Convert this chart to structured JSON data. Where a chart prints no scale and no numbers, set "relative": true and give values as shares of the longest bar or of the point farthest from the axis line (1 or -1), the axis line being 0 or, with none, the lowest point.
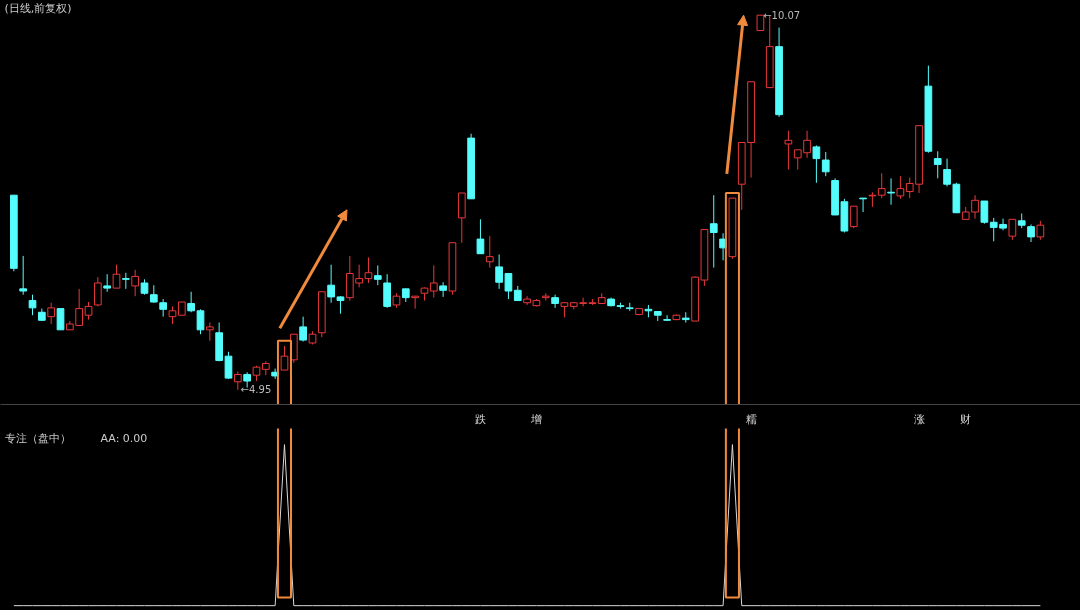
{
  "chart_data": [
    {
      "type": "candlestick",
      "title": "(日线,前复权)",
      "categories": [
        null,
        null,
        null,
        null,
        null,
        null,
        null,
        null,
        null,
        null,
        null,
        null,
        null,
        null,
        null,
        null,
        null,
        null,
        null,
        null,
        null,
        null,
        null,
        null,
        null,
        null,
        null,
        null,
        null,
        null,
        null,
        null,
        null,
        null,
        null,
        null,
        null,
        null,
        null,
        null,
        null,
        null,
        null,
        null,
        null,
        null,
        null,
        null,
        null,
        null,
        "跌",
        null,
        null,
        null,
        null,
        null,
        "增",
        null,
        null,
        null,
        null,
        null,
        null,
        null,
        null,
        null,
        null,
        null,
        null,
        null,
        null,
        null,
        null,
        null,
        null,
        null,
        null,
        null,
        null,
        "糯",
        null,
        null,
        null,
        null,
        null,
        null,
        null,
        null,
        null,
        null,
        null,
        null,
        null,
        null,
        null,
        null,
        null,
        "涨",
        null,
        null,
        null,
        null,
        "财",
        null,
        null,
        null,
        null,
        null,
        null,
        null,
        null
      ],
      "relative": false,
      "ohlc": [
        [
          7.61,
          7.61,
          6.57,
          6.61
        ],
        [
          6.33,
          6.78,
          6.25,
          6.3
        ],
        [
          6.17,
          6.25,
          5.97,
          6.07
        ],
        [
          6.01,
          6.06,
          5.89,
          5.9
        ],
        [
          5.95,
          6.14,
          5.85,
          6.07
        ],
        [
          6.06,
          6.06,
          5.77,
          5.77
        ],
        [
          5.77,
          5.89,
          5.77,
          5.85
        ],
        [
          5.83,
          6.33,
          5.83,
          6.06
        ],
        [
          5.97,
          6.15,
          5.91,
          6.09
        ],
        [
          6.11,
          6.49,
          6.09,
          6.41
        ],
        [
          6.37,
          6.53,
          6.29,
          6.34
        ],
        [
          6.34,
          6.66,
          6.34,
          6.53
        ],
        [
          6.47,
          6.55,
          6.33,
          6.46
        ],
        [
          6.37,
          6.59,
          6.23,
          6.5
        ],
        [
          6.41,
          6.46,
          6.25,
          6.27
        ],
        [
          6.25,
          6.38,
          6.14,
          6.15
        ],
        [
          6.14,
          6.19,
          5.95,
          6.05
        ],
        [
          5.95,
          6.09,
          5.85,
          6.03
        ],
        [
          5.97,
          6.15,
          5.97,
          6.15
        ],
        [
          6.13,
          6.29,
          6.01,
          6.03
        ],
        [
          6.03,
          6.05,
          5.71,
          5.77
        ],
        [
          5.77,
          5.87,
          5.62,
          5.81
        ],
        [
          5.73,
          5.87,
          5.34,
          5.35
        ],
        [
          5.41,
          5.47,
          5.1,
          5.11
        ],
        [
          5.06,
          5.2,
          4.95,
          5.16
        ],
        [
          5.16,
          5.19,
          4.98,
          5.07
        ],
        [
          5.15,
          5.28,
          5.07,
          5.26
        ],
        [
          5.23,
          5.34,
          5.15,
          5.31
        ],
        [
          5.19,
          5.24,
          5.1,
          5.14
        ],
        [
          5.22,
          5.55,
          5.22,
          5.41
        ],
        [
          5.36,
          5.71,
          5.32,
          5.71
        ],
        [
          5.81,
          5.95,
          5.61,
          5.63
        ],
        [
          5.59,
          5.75,
          5.57,
          5.71
        ],
        [
          5.73,
          6.29,
          5.67,
          6.29
        ],
        [
          6.38,
          6.66,
          6.14,
          6.22
        ],
        [
          6.22,
          6.23,
          5.99,
          6.17
        ],
        [
          6.21,
          6.78,
          6.17,
          6.54
        ],
        [
          6.41,
          6.66,
          6.35,
          6.47
        ],
        [
          6.47,
          6.76,
          6.41,
          6.55
        ],
        [
          6.51,
          6.65,
          6.38,
          6.46
        ],
        [
          6.41,
          6.53,
          6.07,
          6.09
        ],
        [
          6.11,
          6.27,
          6.07,
          6.23
        ],
        [
          6.33,
          6.33,
          6.15,
          6.21
        ],
        [
          6.21,
          6.23,
          6.06,
          6.23
        ],
        [
          6.27,
          6.35,
          6.17,
          6.34
        ],
        [
          6.3,
          6.65,
          6.21,
          6.41
        ],
        [
          6.37,
          6.42,
          6.22,
          6.31
        ],
        [
          6.3,
          6.96,
          6.25,
          6.96
        ],
        [
          7.3,
          7.64,
          6.96,
          7.64
        ],
        [
          8.39,
          8.45,
          7.56,
          7.56
        ],
        [
          7.01,
          7.28,
          6.81,
          6.81
        ],
        [
          6.7,
          7.05,
          6.62,
          6.77
        ],
        [
          6.63,
          6.8,
          6.33,
          6.42
        ],
        [
          6.54,
          6.54,
          6.19,
          6.3
        ],
        [
          6.31,
          6.37,
          6.17,
          6.17
        ],
        [
          6.14,
          6.23,
          6.11,
          6.19
        ],
        [
          6.1,
          6.19,
          6.09,
          6.17
        ],
        [
          6.21,
          6.27,
          6.17,
          6.23
        ],
        [
          6.21,
          6.25,
          6.07,
          6.13
        ],
        [
          6.09,
          6.15,
          5.94,
          6.14
        ],
        [
          6.09,
          6.15,
          6.05,
          6.14
        ],
        [
          6.13,
          6.21,
          6.09,
          6.14
        ],
        [
          6.13,
          6.19,
          6.11,
          6.14
        ],
        [
          6.13,
          6.27,
          6.13,
          6.21
        ],
        [
          6.19,
          6.21,
          6.09,
          6.1
        ],
        [
          6.1,
          6.14,
          6.06,
          6.09
        ],
        [
          6.07,
          6.14,
          6.03,
          6.06
        ],
        [
          5.98,
          6.06,
          5.97,
          6.06
        ],
        [
          6.05,
          6.11,
          5.94,
          6.03
        ],
        [
          6.02,
          6.02,
          5.89,
          5.97
        ],
        [
          5.91,
          5.97,
          5.89,
          5.9
        ],
        [
          5.91,
          5.98,
          5.9,
          5.97
        ],
        [
          5.93,
          6.01,
          5.87,
          5.91
        ],
        [
          5.89,
          6.5,
          5.89,
          6.49
        ],
        [
          6.45,
          7.14,
          6.37,
          7.14
        ],
        [
          7.22,
          7.61,
          6.62,
          7.1
        ],
        [
          7.01,
          7.09,
          6.72,
          6.89
        ],
        [
          6.77,
          7.57,
          6.74,
          7.57
        ],
        [
          7.76,
          8.33,
          7.41,
          8.33
        ],
        [
          8.33,
          9.16,
          7.85,
          9.16
        ],
        [
          9.86,
          10.07,
          9.86,
          10.07
        ],
        [
          9.08,
          10.06,
          9.08,
          9.64
        ],
        [
          9.64,
          9.9,
          8.68,
          8.71
        ],
        [
          8.31,
          8.49,
          7.96,
          8.36
        ],
        [
          8.12,
          8.23,
          7.96,
          8.23
        ],
        [
          8.19,
          8.49,
          8.12,
          8.36
        ],
        [
          8.27,
          8.29,
          7.78,
          8.11
        ],
        [
          8.09,
          8.2,
          7.87,
          7.93
        ],
        [
          7.81,
          7.84,
          7.34,
          7.34
        ],
        [
          7.52,
          7.56,
          7.1,
          7.12
        ],
        [
          7.18,
          7.46,
          7.16,
          7.46
        ],
        [
          7.57,
          7.57,
          7.38,
          7.56
        ],
        [
          7.6,
          7.65,
          7.45,
          7.61
        ],
        [
          7.61,
          7.91,
          7.57,
          7.7
        ],
        [
          7.65,
          7.84,
          7.48,
          7.64
        ],
        [
          7.6,
          7.87,
          7.56,
          7.7
        ],
        [
          7.66,
          7.85,
          7.57,
          7.77
        ],
        [
          7.76,
          8.56,
          7.64,
          8.56
        ],
        [
          9.1,
          9.38,
          8.19,
          8.21
        ],
        [
          8.11,
          8.21,
          7.84,
          8.03
        ],
        [
          7.96,
          8.11,
          7.73,
          7.76
        ],
        [
          7.76,
          7.78,
          7.37,
          7.37
        ],
        [
          7.28,
          7.45,
          7.28,
          7.38
        ],
        [
          7.38,
          7.61,
          7.29,
          7.54
        ],
        [
          7.53,
          7.53,
          7.22,
          7.24
        ],
        [
          7.24,
          7.3,
          6.98,
          7.17
        ],
        [
          7.21,
          7.29,
          7.13,
          7.16
        ],
        [
          7.05,
          7.28,
          7.0,
          7.28
        ],
        [
          7.26,
          7.36,
          7.16,
          7.2
        ],
        [
          7.18,
          7.21,
          6.97,
          7.04
        ],
        [
          7.04,
          7.26,
          7.0,
          7.2
        ]
      ],
      "colors": [
        "#54fcfc",
        "#54fcfc",
        "#54fcfc",
        "#54fcfc",
        "#e8383a",
        "#54fcfc",
        "#e8383a",
        "#e8383a",
        "#e8383a",
        "#e8383a",
        "#54fcfc",
        "#e8383a",
        "#54fcfc",
        "#e8383a",
        "#54fcfc",
        "#54fcfc",
        "#54fcfc",
        "#e8383a",
        "#e8383a",
        "#54fcfc",
        "#54fcfc",
        "#e8383a",
        "#54fcfc",
        "#54fcfc",
        "#e8383a",
        "#54fcfc",
        "#e8383a",
        "#e8383a",
        "#54fcfc",
        "#e8383a",
        "#e8383a",
        "#54fcfc",
        "#e8383a",
        "#e8383a",
        "#54fcfc",
        "#54fcfc",
        "#e8383a",
        "#e8383a",
        "#e8383a",
        "#54fcfc",
        "#54fcfc",
        "#e8383a",
        "#54fcfc",
        "#e8383a",
        "#e8383a",
        "#e8383a",
        "#54fcfc",
        "#e8383a",
        "#e8383a",
        "#54fcfc",
        "#54fcfc",
        "#e8383a",
        "#54fcfc",
        "#54fcfc",
        "#54fcfc",
        "#e8383a",
        "#e8383a",
        "#e8383a",
        "#54fcfc",
        "#e8383a",
        "#e8383a",
        "#e8383a",
        "#e8383a",
        "#e8383a",
        "#54fcfc",
        "#54fcfc",
        "#54fcfc",
        "#e8383a",
        "#54fcfc",
        "#54fcfc",
        "#54fcfc",
        "#e8383a",
        "#54fcfc",
        "#e8383a",
        "#e8383a",
        "#54fcfc",
        "#54fcfc",
        "#e8383a",
        "#e8383a",
        "#e8383a",
        "#e8383a",
        "#e8383a",
        "#54fcfc",
        "#e8383a",
        "#e8383a",
        "#e8383a",
        "#54fcfc",
        "#54fcfc",
        "#54fcfc",
        "#54fcfc",
        "#e8383a",
        "#54fcfc",
        "#e8383a",
        "#e8383a",
        "#54fcfc",
        "#e8383a",
        "#e8383a",
        "#e8383a",
        "#54fcfc",
        "#54fcfc",
        "#54fcfc",
        "#54fcfc",
        "#e8383a",
        "#e8383a",
        "#54fcfc",
        "#54fcfc",
        "#54fcfc",
        "#e8383a",
        "#54fcfc",
        "#54fcfc",
        "#e8383a"
      ],
      "annotations": [
        "←4.95",
        "←10.07"
      ]
    },
    {
      "type": "line",
      "title": "专注（盘中）",
      "relative": true,
      "categories": [
        null,
        null,
        null,
        null,
        null,
        null,
        null,
        null,
        null,
        null,
        null,
        null,
        null,
        null,
        null,
        null,
        null,
        null,
        null,
        null,
        null,
        null,
        null,
        null,
        null,
        null,
        null,
        null,
        null,
        null,
        null,
        null,
        null,
        null,
        null,
        null,
        null,
        null,
        null,
        null,
        null,
        null,
        null,
        null,
        null,
        null,
        null,
        null,
        null,
        null,
        null,
        null,
        null,
        null,
        null,
        null,
        null,
        null,
        null,
        null,
        null,
        null,
        null,
        null,
        null,
        null,
        null,
        null,
        null,
        null,
        null,
        null,
        null,
        null,
        null,
        null,
        null,
        null,
        null,
        null,
        null,
        null,
        null,
        null,
        null,
        null,
        null,
        null,
        null,
        null,
        null,
        null,
        null,
        null,
        null,
        null,
        null,
        null,
        null,
        null,
        null,
        null,
        null,
        null,
        null,
        null,
        null,
        null,
        null,
        null,
        null
      ],
      "series": [
        {
          "color": "#d8d8d8",
          "values": [
            0,
            0,
            0,
            0,
            0,
            0,
            0,
            0,
            0,
            0,
            0,
            0,
            0,
            0,
            0,
            0,
            0,
            0,
            0,
            0,
            0,
            0,
            0,
            0,
            0,
            0,
            0,
            0,
            0,
            1,
            0,
            0,
            0,
            0,
            0,
            0,
            0,
            0,
            0,
            0,
            0,
            0,
            0,
            0,
            0,
            0,
            0,
            0,
            0,
            0,
            0,
            0,
            0,
            0,
            0,
            0,
            0,
            0,
            0,
            0,
            0,
            0,
            0,
            0,
            0,
            0,
            0,
            0,
            0,
            0,
            0,
            0,
            0,
            0,
            0,
            0,
            0,
            1,
            0,
            0,
            0,
            0,
            0,
            0,
            0,
            0,
            0,
            0,
            0,
            0,
            0,
            0,
            0,
            0,
            0,
            0,
            0,
            0,
            0,
            0,
            0,
            0,
            0,
            0,
            0,
            0,
            0,
            0,
            0,
            0,
            0
          ]
        }
      ],
      "annotations": [
        "AA: 0.00"
      ]
    }
  ]
}
